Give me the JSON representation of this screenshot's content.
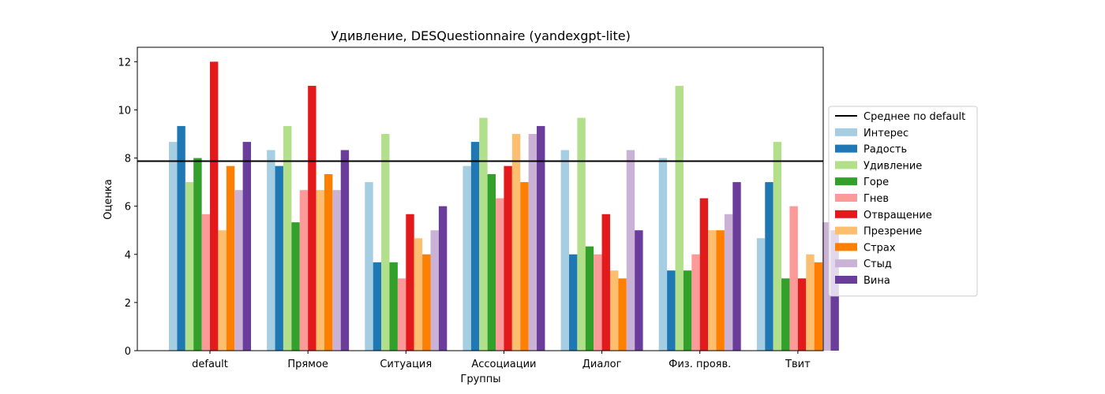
{
  "chart_data": {
    "type": "bar",
    "title": "Удивление, DESQuestionnaire (yandexgpt-lite)",
    "xlabel": "Группы",
    "ylabel": "Оценка",
    "ylim": [
      0,
      12.6
    ],
    "yticks": [
      "0",
      "2",
      "4",
      "6",
      "8",
      "10",
      "12"
    ],
    "grid": false,
    "legend_position": "right",
    "reference_line": {
      "name": "Среднее по default",
      "value": 7.87,
      "color": "#000000"
    },
    "categories": [
      "default",
      "Прямое",
      "Ситуация",
      "Ассоциации",
      "Диалог",
      "Физ. прояв.",
      "Твит"
    ],
    "series": [
      {
        "name": "Интерес",
        "color": "#a6cee3",
        "values": [
          8.67,
          8.33,
          7.0,
          7.67,
          8.33,
          8.0,
          4.67
        ]
      },
      {
        "name": "Радость",
        "color": "#1f78b4",
        "values": [
          9.33,
          7.67,
          3.67,
          8.67,
          4.0,
          3.33,
          7.0
        ]
      },
      {
        "name": "Удивление",
        "color": "#b2df8a",
        "values": [
          7.0,
          9.33,
          9.0,
          9.67,
          9.67,
          11.0,
          8.67
        ]
      },
      {
        "name": "Горе",
        "color": "#33a02c",
        "values": [
          8.0,
          5.33,
          3.67,
          7.33,
          4.33,
          3.33,
          3.0
        ]
      },
      {
        "name": "Гнев",
        "color": "#fb9a99",
        "values": [
          5.67,
          6.67,
          3.0,
          6.33,
          4.0,
          4.0,
          6.0
        ]
      },
      {
        "name": "Отвращение",
        "color": "#e31a1c",
        "values": [
          12.0,
          11.0,
          5.67,
          7.67,
          5.67,
          6.33,
          3.0
        ]
      },
      {
        "name": "Презрение",
        "color": "#fdbf6f",
        "values": [
          5.0,
          6.67,
          4.67,
          9.0,
          3.33,
          5.0,
          4.0
        ]
      },
      {
        "name": "Страх",
        "color": "#ff7f00",
        "values": [
          7.67,
          7.33,
          4.0,
          7.0,
          3.0,
          5.0,
          3.67
        ]
      },
      {
        "name": "Стыд",
        "color": "#cab2d6",
        "values": [
          6.67,
          6.67,
          5.0,
          9.0,
          8.33,
          5.67,
          5.33
        ]
      },
      {
        "name": "Вина",
        "color": "#6a3d9a",
        "values": [
          8.67,
          8.33,
          6.0,
          9.33,
          5.0,
          7.0,
          5.0
        ]
      }
    ]
  }
}
